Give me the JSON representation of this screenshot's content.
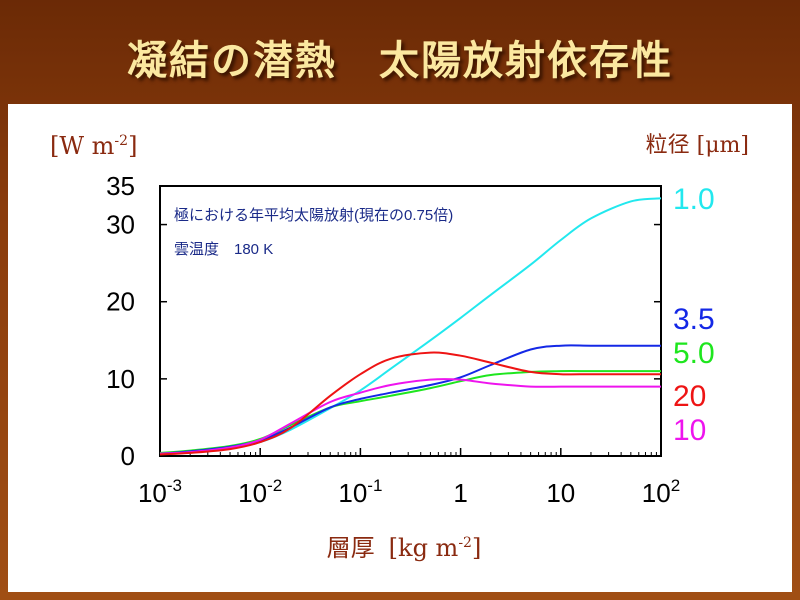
{
  "slide": {
    "title": "凝結の潜熱　太陽放射依存性"
  },
  "chart_data": {
    "type": "line",
    "title": "",
    "ylabel": "[W m-2]",
    "ylabel_unit_base": "[W m",
    "ylabel_unit_exp": "-2",
    "ylabel_unit_end": "]",
    "xlabel": "層厚 [kg m-2]",
    "xlabel_main": "層厚",
    "xlabel_unit_base": "[kg m",
    "xlabel_unit_exp": "-2",
    "xlabel_unit_end": "]",
    "legend_title": "粒径 [μm]",
    "legend_placement": "right",
    "x_scale": "log",
    "xlim": [
      0.001,
      100
    ],
    "ylim": [
      0,
      35
    ],
    "x_ticks": [
      {
        "value": 0.001,
        "base": "10",
        "exp": "-3"
      },
      {
        "value": 0.01,
        "base": "10",
        "exp": "-2"
      },
      {
        "value": 0.1,
        "base": "10",
        "exp": "-1"
      },
      {
        "value": 1,
        "base": "1",
        "exp": ""
      },
      {
        "value": 10,
        "base": "10",
        "exp": ""
      },
      {
        "value": 100,
        "base": "10",
        "exp": "2"
      }
    ],
    "y_ticks": [
      0,
      10,
      20,
      30,
      35
    ],
    "annotations": [
      "極における年平均太陽放射(現在の0.75倍)",
      "雲温度　180 K"
    ],
    "x": [
      0.001,
      0.002,
      0.005,
      0.01,
      0.02,
      0.05,
      0.1,
      0.2,
      0.5,
      1,
      2,
      5,
      10,
      20,
      50,
      100
    ],
    "series": [
      {
        "name": "1.0",
        "color": "#22e8ee",
        "values": [
          0.3,
          0.5,
          1.0,
          1.8,
          3.4,
          6.2,
          8.5,
          11.3,
          15.0,
          17.9,
          20.9,
          24.8,
          28.0,
          30.8,
          33.0,
          33.4
        ]
      },
      {
        "name": "3.5",
        "color": "#1428e6",
        "values": [
          0.3,
          0.6,
          1.2,
          2.0,
          3.7,
          6.3,
          7.4,
          8.2,
          9.2,
          10.2,
          11.8,
          13.8,
          14.3,
          14.3,
          14.3,
          14.3
        ]
      },
      {
        "name": "5.0",
        "color": "#1ee61e",
        "values": [
          0.4,
          0.7,
          1.3,
          2.2,
          4.0,
          6.3,
          7.1,
          7.8,
          8.8,
          9.7,
          10.5,
          10.9,
          11.0,
          11.0,
          11.0,
          11.0
        ]
      },
      {
        "name": "20",
        "color": "#ee1414",
        "values": [
          0.2,
          0.4,
          0.9,
          1.8,
          3.6,
          7.8,
          10.6,
          12.6,
          13.4,
          13.0,
          12.1,
          10.9,
          10.6,
          10.6,
          10.6,
          10.6
        ]
      },
      {
        "name": "10",
        "color": "#ee14ee",
        "values": [
          0.3,
          0.5,
          1.1,
          2.1,
          4.2,
          7.0,
          8.2,
          9.2,
          9.9,
          9.9,
          9.4,
          9.0,
          9.0,
          9.0,
          9.0,
          9.0
        ]
      }
    ]
  }
}
